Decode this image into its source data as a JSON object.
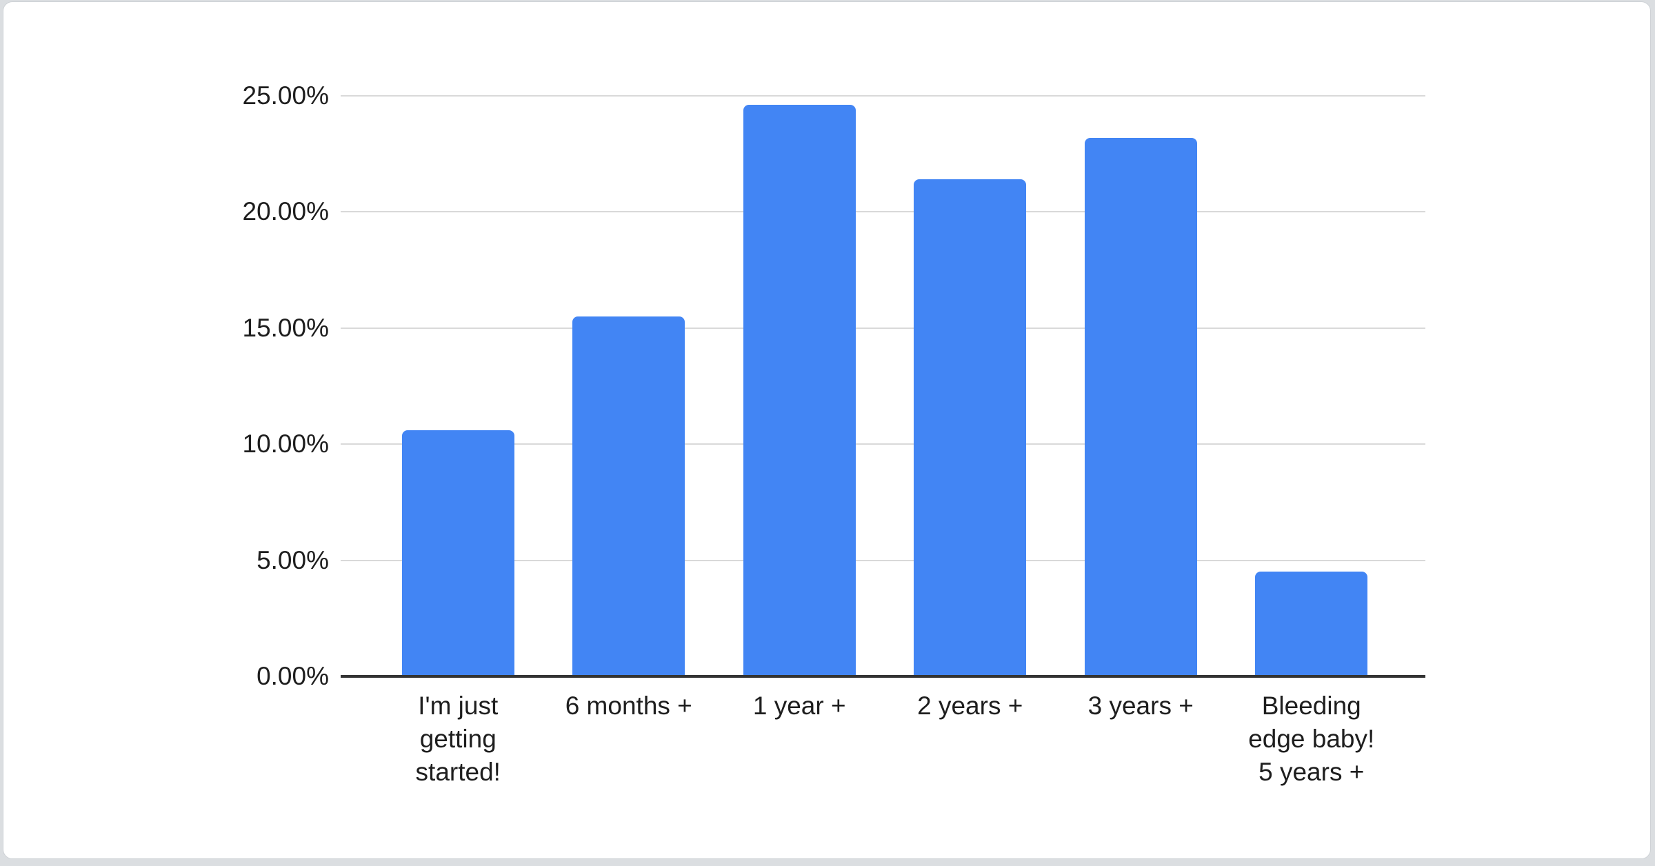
{
  "chart_data": {
    "type": "bar",
    "title": "",
    "xlabel": "",
    "ylabel": "",
    "categories": [
      "I'm just getting started!",
      "6 months +",
      "1 year +",
      "2 years +",
      "3 years +",
      "Bleeding edge baby! 5 years +"
    ],
    "category_display_lines": [
      "I'm just\ngetting\nstarted!",
      "6 months +",
      "1 year +",
      "2 years +",
      "3 years +",
      "Bleeding\nedge baby!\n5 years +"
    ],
    "values": [
      10.6,
      15.5,
      24.6,
      21.4,
      23.2,
      4.5
    ],
    "value_unit": "%",
    "y_ticks": [
      {
        "value": 0,
        "label": "0.00%"
      },
      {
        "value": 5,
        "label": "5.00%"
      },
      {
        "value": 10,
        "label": "10.00%"
      },
      {
        "value": 15,
        "label": "15.00%"
      },
      {
        "value": 20,
        "label": "20.00%"
      },
      {
        "value": 25,
        "label": "25.00%"
      }
    ],
    "ylim": [
      0,
      25
    ],
    "grid": true,
    "legend": "none",
    "colors": {
      "bar": "#4285f4",
      "gridline": "#d9d9d9",
      "axis": "#333333",
      "text": "#1e1e1e",
      "card_background": "#ffffff",
      "page_background": "#dbdee1"
    }
  }
}
